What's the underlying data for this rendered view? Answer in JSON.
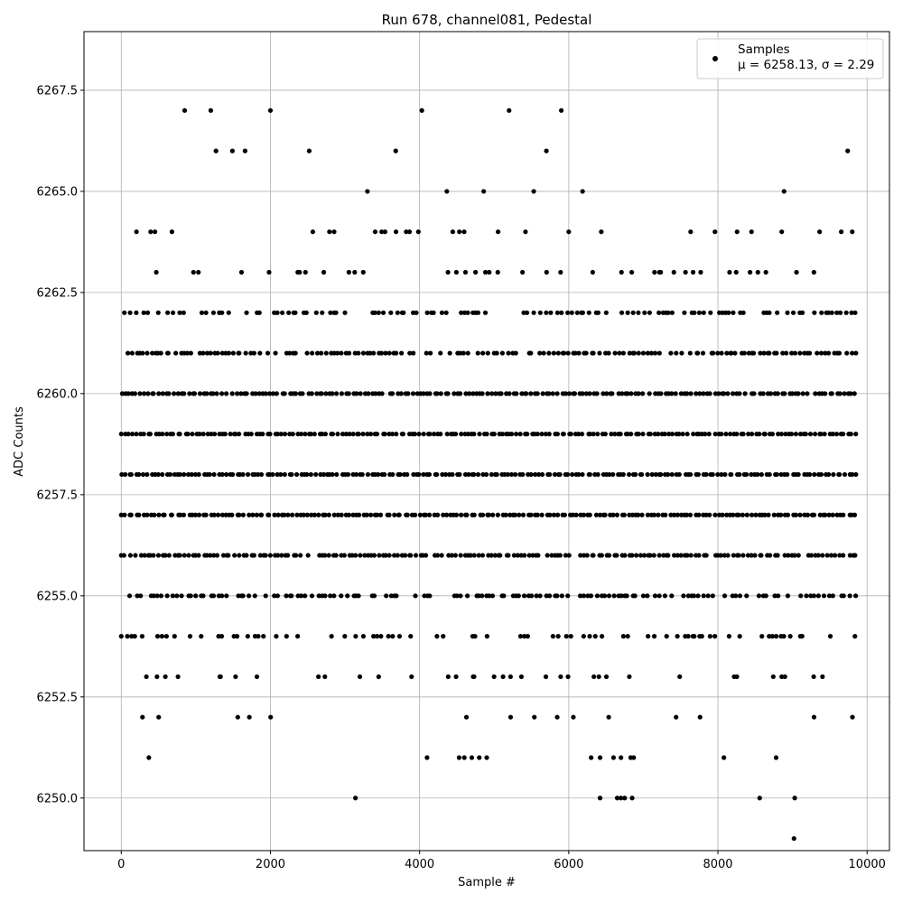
{
  "chart_data": {
    "type": "scatter",
    "title": "Run 678, channel081, Pedestal",
    "xlabel": "Sample #",
    "ylabel": "ADC Counts",
    "xlim": [
      -500,
      10300
    ],
    "ylim": [
      6248.7,
      6268.95
    ],
    "x_ticks": [
      0,
      2000,
      4000,
      6000,
      8000,
      10000
    ],
    "x_tick_labels": [
      "0",
      "2000",
      "4000",
      "6000",
      "8000",
      "10000"
    ],
    "y_ticks": [
      6250.0,
      6252.5,
      6255.0,
      6257.5,
      6260.0,
      6262.5,
      6265.0,
      6267.5
    ],
    "y_tick_labels": [
      "6250.0",
      "6252.5",
      "6255.0",
      "6257.5",
      "6260.0",
      "6262.5",
      "6265.0",
      "6267.5"
    ],
    "grid": true,
    "legend_position": "top-right",
    "marker_color": "#000000",
    "series": [
      {
        "name": "Samples",
        "stats_label": "μ = 6258.13, σ = 2.29",
        "mu": 6258.13,
        "sigma": 2.29,
        "n_samples": 9850,
        "x_range": [
          0,
          9850
        ],
        "sparse_points": [
          {
            "x": 850,
            "y": 6267
          },
          {
            "x": 1200,
            "y": 6267
          },
          {
            "x": 2000,
            "y": 6267
          },
          {
            "x": 4030,
            "y": 6267
          },
          {
            "x": 5200,
            "y": 6267
          },
          {
            "x": 5900,
            "y": 6267
          },
          {
            "x": 1270,
            "y": 6266
          },
          {
            "x": 1490,
            "y": 6266
          },
          {
            "x": 1660,
            "y": 6266
          },
          {
            "x": 2520,
            "y": 6266
          },
          {
            "x": 3680,
            "y": 6266
          },
          {
            "x": 5700,
            "y": 6266
          },
          {
            "x": 9740,
            "y": 6266
          },
          {
            "x": 3140,
            "y": 6250
          },
          {
            "x": 6420,
            "y": 6250
          },
          {
            "x": 6650,
            "y": 6250
          },
          {
            "x": 6700,
            "y": 6250
          },
          {
            "x": 6750,
            "y": 6250
          },
          {
            "x": 6850,
            "y": 6250
          },
          {
            "x": 8560,
            "y": 6250
          },
          {
            "x": 9030,
            "y": 6250
          },
          {
            "x": 9020,
            "y": 6249
          },
          {
            "x": 370,
            "y": 6251
          },
          {
            "x": 4100,
            "y": 6251
          },
          {
            "x": 4530,
            "y": 6251
          },
          {
            "x": 4600,
            "y": 6251
          },
          {
            "x": 4700,
            "y": 6251
          },
          {
            "x": 4800,
            "y": 6251
          },
          {
            "x": 4900,
            "y": 6251
          },
          {
            "x": 6300,
            "y": 6251
          },
          {
            "x": 6420,
            "y": 6251
          },
          {
            "x": 6600,
            "y": 6251
          },
          {
            "x": 6700,
            "y": 6251
          },
          {
            "x": 6830,
            "y": 6251
          },
          {
            "x": 6870,
            "y": 6251
          },
          {
            "x": 8080,
            "y": 6251
          },
          {
            "x": 8780,
            "y": 6251
          }
        ],
        "level_bands": [
          {
            "y": 6265,
            "density": 0.04
          },
          {
            "y": 6264,
            "density": 0.1
          },
          {
            "y": 6263,
            "density": 0.22
          },
          {
            "y": 6262,
            "density": 0.55
          },
          {
            "y": 6261,
            "density": 0.78
          },
          {
            "y": 6260,
            "density": 0.96
          },
          {
            "y": 6259,
            "density": 1.0
          },
          {
            "y": 6258,
            "density": 1.0
          },
          {
            "y": 6257,
            "density": 1.0
          },
          {
            "y": 6256,
            "density": 0.95
          },
          {
            "y": 6255,
            "density": 0.72
          },
          {
            "y": 6254,
            "density": 0.35
          },
          {
            "y": 6253,
            "density": 0.15
          },
          {
            "y": 6252,
            "density": 0.07
          }
        ]
      }
    ]
  }
}
